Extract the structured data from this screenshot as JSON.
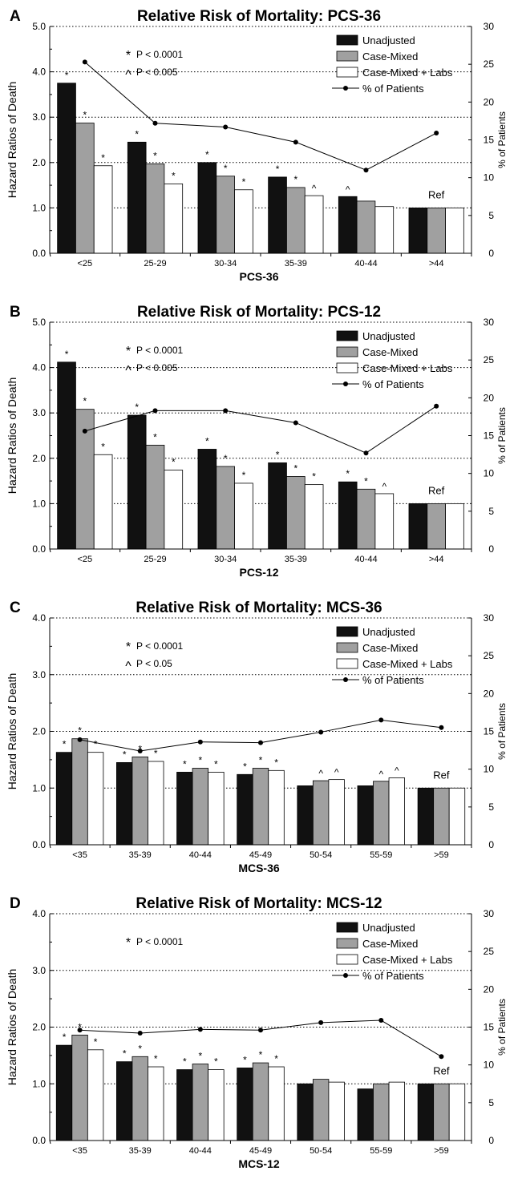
{
  "figure": {
    "legend_labels": [
      "Unadjusted",
      "Case-Mixed",
      "Case-Mixed + Labs",
      "% of Patients"
    ],
    "ylabel_left": "Hazard Ratios of Death",
    "ylabel_right": "% of Patients",
    "ref_label": "Ref"
  },
  "colors": {
    "unadjusted": "#111111",
    "case_mixed": "#a0a0a0",
    "case_mixed_labs": "#ffffff",
    "line": "#000000"
  },
  "chart_data": [
    {
      "panel_letter": "A",
      "title": "Relative Risk of Mortality: PCS-36",
      "type": "bar",
      "xlabel": "PCS-36",
      "ylabel": "Hazard Ratios of Death",
      "y2label": "% of Patients",
      "ylim": [
        0,
        5
      ],
      "y2lim": [
        0,
        30
      ],
      "yticks": [
        "0.0",
        "1.0",
        "2.0",
        "3.0",
        "4.0",
        "5.0"
      ],
      "y2ticks": [
        "0",
        "5",
        "10",
        "15",
        "20",
        "25",
        "30"
      ],
      "categories": [
        "<25",
        "25-29",
        "30-34",
        "35-39",
        "40-44",
        ">44"
      ],
      "series": [
        {
          "name": "Unadjusted",
          "values": [
            3.75,
            2.45,
            2.0,
            1.68,
            1.25,
            1.0
          ]
        },
        {
          "name": "Case-Mixed",
          "values": [
            2.87,
            1.97,
            1.7,
            1.45,
            1.15,
            1.0
          ]
        },
        {
          "name": "Case-Mixed + Labs",
          "values": [
            1.93,
            1.53,
            1.4,
            1.27,
            1.03,
            1.0
          ]
        }
      ],
      "line_series": {
        "name": "% of Patients",
        "values": [
          25.3,
          17.2,
          16.7,
          14.7,
          11.0,
          15.9
        ]
      },
      "marks": [
        [
          "*",
          "*",
          "*"
        ],
        [
          "*",
          "*",
          "*"
        ],
        [
          "*",
          "*",
          "*"
        ],
        [
          "*",
          "*",
          "^"
        ],
        [
          "^",
          "",
          ""
        ],
        [
          "",
          "",
          ""
        ]
      ],
      "annotations": [
        {
          "symbol": "*",
          "text": "P < 0.0001"
        },
        {
          "symbol": "^",
          "text": "P < 0.005"
        }
      ]
    },
    {
      "panel_letter": "B",
      "title": "Relative Risk of Mortality: PCS-12",
      "type": "bar",
      "xlabel": "PCS-12",
      "ylabel": "Hazard Ratios of Death",
      "y2label": "% of Patients",
      "ylim": [
        0,
        5
      ],
      "y2lim": [
        0,
        30
      ],
      "yticks": [
        "0.0",
        "1.0",
        "2.0",
        "3.0",
        "4.0",
        "5.0"
      ],
      "y2ticks": [
        "0",
        "5",
        "10",
        "15",
        "20",
        "25",
        "30"
      ],
      "categories": [
        "<25",
        "25-29",
        "30-34",
        "35-39",
        "40-44",
        ">44"
      ],
      "series": [
        {
          "name": "Unadjusted",
          "values": [
            4.12,
            2.95,
            2.2,
            1.9,
            1.48,
            1.0
          ]
        },
        {
          "name": "Case-Mixed",
          "values": [
            3.08,
            2.29,
            1.82,
            1.6,
            1.32,
            1.0
          ]
        },
        {
          "name": "Case-Mixed + Labs",
          "values": [
            2.08,
            1.74,
            1.45,
            1.42,
            1.22,
            1.0
          ]
        }
      ],
      "line_series": {
        "name": "% of Patients",
        "values": [
          15.6,
          18.3,
          18.3,
          16.7,
          12.7,
          18.9
        ]
      },
      "marks": [
        [
          "*",
          "*",
          "*"
        ],
        [
          "*",
          "*",
          "*"
        ],
        [
          "*",
          "*",
          "*"
        ],
        [
          "*",
          "*",
          "*"
        ],
        [
          "*",
          "*",
          "^"
        ],
        [
          "",
          "",
          ""
        ]
      ],
      "annotations": [
        {
          "symbol": "*",
          "text": "P < 0.0001"
        },
        {
          "symbol": "^",
          "text": "P < 0.005"
        }
      ]
    },
    {
      "panel_letter": "C",
      "title": "Relative Risk of Mortality: MCS-36",
      "type": "bar",
      "xlabel": "MCS-36",
      "ylabel": "Hazard Ratios of Death",
      "y2label": "% of Patients",
      "ylim": [
        0,
        4
      ],
      "y2lim": [
        0,
        30
      ],
      "yticks": [
        "0.0",
        "1.0",
        "2.0",
        "3.0",
        "4.0"
      ],
      "y2ticks": [
        "0",
        "5",
        "10",
        "15",
        "20",
        "25",
        "30"
      ],
      "categories": [
        "<35",
        "35-39",
        "40-44",
        "45-49",
        "50-54",
        "55-59",
        ">59"
      ],
      "series": [
        {
          "name": "Unadjusted",
          "values": [
            1.63,
            1.45,
            1.28,
            1.24,
            1.04,
            1.04,
            1.0
          ]
        },
        {
          "name": "Case-Mixed",
          "values": [
            1.87,
            1.55,
            1.35,
            1.35,
            1.13,
            1.12,
            1.0
          ]
        },
        {
          "name": "Case-Mixed + Labs",
          "values": [
            1.63,
            1.47,
            1.28,
            1.31,
            1.15,
            1.18,
            1.0
          ]
        }
      ],
      "line_series": {
        "name": "% of Patients",
        "values": [
          13.9,
          12.4,
          13.6,
          13.5,
          14.9,
          16.5,
          15.5
        ]
      },
      "marks": [
        [
          "*",
          "*",
          "*"
        ],
        [
          "*",
          "*",
          "*"
        ],
        [
          "*",
          "*",
          "*"
        ],
        [
          "*",
          "*",
          "*"
        ],
        [
          "",
          "^",
          "^"
        ],
        [
          "",
          "^",
          "^"
        ],
        [
          "",
          "",
          ""
        ]
      ],
      "annotations": [
        {
          "symbol": "*",
          "text": "P < 0.0001"
        },
        {
          "symbol": "^",
          "text": "P < 0.05"
        }
      ]
    },
    {
      "panel_letter": "D",
      "title": "Relative Risk of Mortality: MCS-12",
      "type": "bar",
      "xlabel": "MCS-12",
      "ylabel": "Hazard Ratios of Death",
      "y2label": "% of Patients",
      "ylim": [
        0,
        4
      ],
      "y2lim": [
        0,
        30
      ],
      "yticks": [
        "0.0",
        "1.0",
        "2.0",
        "3.0",
        "4.0"
      ],
      "y2ticks": [
        "0",
        "5",
        "10",
        "15",
        "20",
        "25",
        "30"
      ],
      "categories": [
        "<35",
        "35-39",
        "40-44",
        "45-49",
        "50-54",
        "55-59",
        ">59"
      ],
      "series": [
        {
          "name": "Unadjusted",
          "values": [
            1.68,
            1.39,
            1.25,
            1.28,
            1.0,
            0.91,
            1.0
          ]
        },
        {
          "name": "Case-Mixed",
          "values": [
            1.86,
            1.48,
            1.35,
            1.37,
            1.08,
            1.0,
            1.0
          ]
        },
        {
          "name": "Case-Mixed + Labs",
          "values": [
            1.6,
            1.3,
            1.25,
            1.3,
            1.03,
            1.03,
            1.0
          ]
        }
      ],
      "line_series": {
        "name": "% of Patients",
        "values": [
          14.6,
          14.2,
          14.7,
          14.6,
          15.6,
          15.9,
          11.1
        ]
      },
      "marks": [
        [
          "*",
          "*",
          "*"
        ],
        [
          "*",
          "*",
          "*"
        ],
        [
          "*",
          "*",
          "*"
        ],
        [
          "*",
          "*",
          "*"
        ],
        [
          "",
          "",
          ""
        ],
        [
          "",
          "",
          ""
        ],
        [
          "",
          "",
          ""
        ]
      ],
      "annotations": [
        {
          "symbol": "*",
          "text": "P < 0.0001"
        }
      ]
    }
  ]
}
